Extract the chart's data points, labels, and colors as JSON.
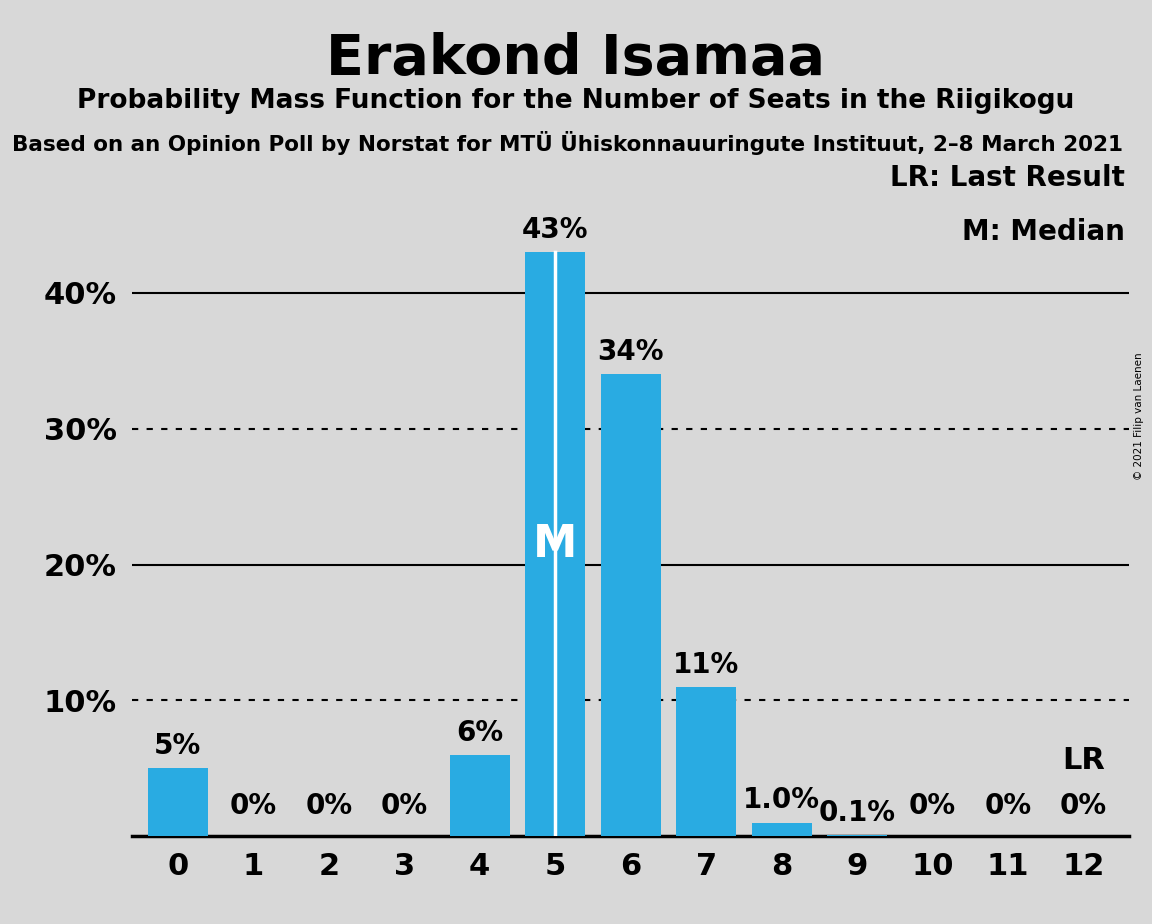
{
  "title": "Erakond Isamaa",
  "subtitle": "Probability Mass Function for the Number of Seats in the Riigikogu",
  "source_line": "Based on an Opinion Poll by Norstat for MTÜ Ühiskonnauuringute Instituut, 2–8 March 2021",
  "copyright": "© 2021 Filip van Laenen",
  "seats": [
    0,
    1,
    2,
    3,
    4,
    5,
    6,
    7,
    8,
    9,
    10,
    11,
    12
  ],
  "probabilities": [
    5,
    0,
    0,
    0,
    6,
    43,
    34,
    11,
    1.0,
    0.1,
    0,
    0,
    0
  ],
  "bar_color": "#29ABE2",
  "median": 5,
  "last_result": 12,
  "background_color": "#D8D8D8",
  "ylim": [
    0,
    50
  ],
  "solid_gridlines": [
    20,
    40
  ],
  "dotted_gridlines": [
    10,
    30
  ],
  "label_map": {
    "0": "5%",
    "1": "0%",
    "2": "0%",
    "3": "0%",
    "4": "6%",
    "5": "43%",
    "6": "34%",
    "7": "11%",
    "8": "1.0%",
    "9": "0.1%",
    "10": "0%",
    "11": "0%",
    "12": "0%"
  },
  "legend_lr": "LR: Last Result",
  "legend_m": "M: Median",
  "ytick_vals": [
    20,
    40
  ],
  "ytick_labels": [
    "20%",
    "40%"
  ],
  "ytick_dotted_labels_vals": [
    10,
    30
  ],
  "ytick_dotted_labels": [
    "10%",
    "30%"
  ]
}
